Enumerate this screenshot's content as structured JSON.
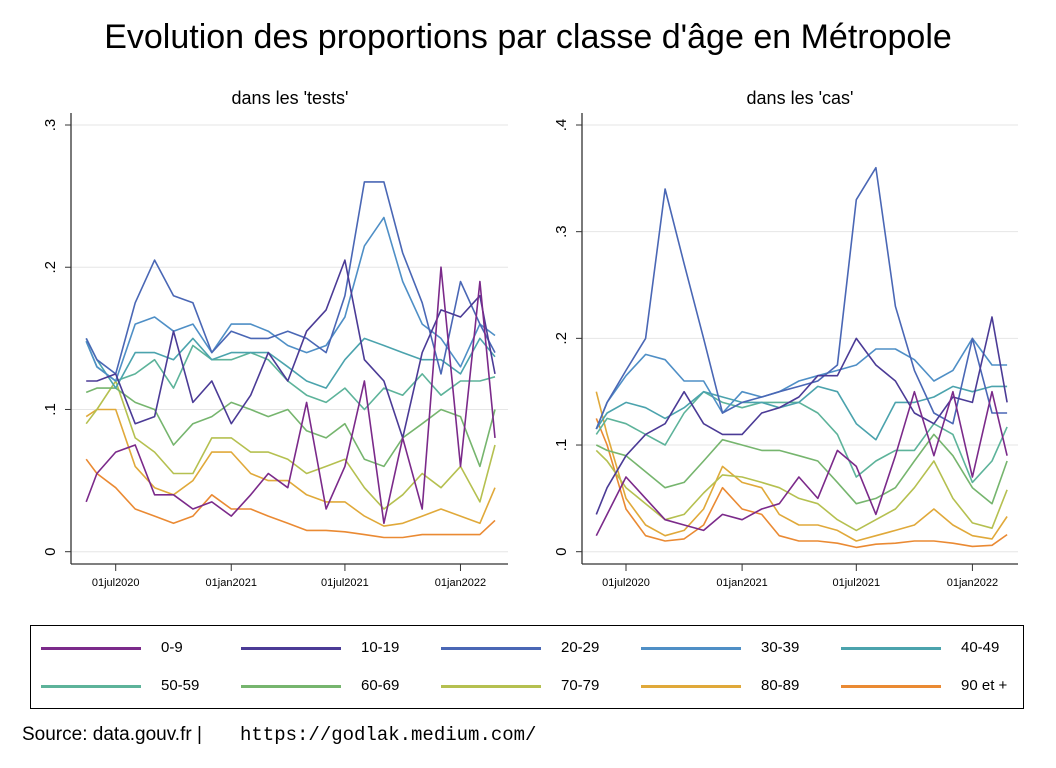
{
  "title": "Evolution des proportions par classe d'âge en Métropole",
  "source": "Source: data.gouv.fr |",
  "url": "https://godlak.medium.com/",
  "chart_data": [
    {
      "type": "line",
      "title": "dans les 'tests'",
      "xlabel": "",
      "ylabel": "",
      "ylim": [
        0,
        0.3
      ],
      "yticks": [
        {
          "v": 0,
          "label": "0"
        },
        {
          "v": 0.1,
          "label": ".1"
        },
        {
          "v": 0.2,
          "label": ".2"
        },
        {
          "v": 0.3,
          "label": ".3"
        }
      ],
      "xticks": [
        {
          "date": "2020-07-01",
          "label": "01jul2020"
        },
        {
          "date": "2021-01-01",
          "label": "01jan2021"
        },
        {
          "date": "2021-07-01",
          "label": "01jul2021"
        },
        {
          "date": "2022-01-01",
          "label": "01jan2022"
        }
      ],
      "grid": true,
      "x": [
        "2020-05-15",
        "2020-06-01",
        "2020-07-01",
        "2020-08-01",
        "2020-09-01",
        "2020-10-01",
        "2020-11-01",
        "2020-12-01",
        "2021-01-01",
        "2021-02-01",
        "2021-03-01",
        "2021-04-01",
        "2021-05-01",
        "2021-06-01",
        "2021-07-01",
        "2021-08-01",
        "2021-09-01",
        "2021-10-01",
        "2021-11-01",
        "2021-12-01",
        "2022-01-01",
        "2022-02-01",
        "2022-02-25"
      ],
      "series": [
        {
          "name": "0-9",
          "values": [
            0.035,
            0.055,
            0.07,
            0.075,
            0.04,
            0.04,
            0.03,
            0.035,
            0.025,
            0.04,
            0.055,
            0.045,
            0.105,
            0.03,
            0.06,
            0.12,
            0.02,
            0.08,
            0.03,
            0.2,
            0.06,
            0.19,
            0.08
          ]
        },
        {
          "name": "10-19",
          "values": [
            0.12,
            0.12,
            0.125,
            0.09,
            0.095,
            0.155,
            0.105,
            0.12,
            0.09,
            0.11,
            0.14,
            0.12,
            0.155,
            0.17,
            0.205,
            0.135,
            0.12,
            0.08,
            0.14,
            0.17,
            0.165,
            0.18,
            0.125
          ]
        },
        {
          "name": "20-29",
          "values": [
            0.15,
            0.135,
            0.125,
            0.175,
            0.205,
            0.18,
            0.175,
            0.14,
            0.155,
            0.15,
            0.15,
            0.155,
            0.15,
            0.14,
            0.18,
            0.26,
            0.26,
            0.21,
            0.175,
            0.125,
            0.19,
            0.16,
            0.14
          ]
        },
        {
          "name": "30-39",
          "values": [
            0.148,
            0.13,
            0.12,
            0.16,
            0.165,
            0.155,
            0.16,
            0.14,
            0.16,
            0.16,
            0.155,
            0.145,
            0.14,
            0.145,
            0.165,
            0.215,
            0.235,
            0.19,
            0.16,
            0.15,
            0.13,
            0.16,
            0.152
          ]
        },
        {
          "name": "40-49",
          "values": [
            0.15,
            0.135,
            0.115,
            0.14,
            0.14,
            0.135,
            0.15,
            0.135,
            0.14,
            0.14,
            0.14,
            0.13,
            0.12,
            0.115,
            0.135,
            0.15,
            0.145,
            0.14,
            0.135,
            0.135,
            0.125,
            0.15,
            0.137
          ]
        },
        {
          "name": "50-59",
          "values": [
            0.148,
            0.13,
            0.12,
            0.125,
            0.135,
            0.115,
            0.145,
            0.135,
            0.135,
            0.14,
            0.135,
            0.12,
            0.11,
            0.105,
            0.115,
            0.1,
            0.115,
            0.11,
            0.125,
            0.11,
            0.12,
            0.12,
            0.123
          ]
        },
        {
          "name": "60-69",
          "values": [
            0.112,
            0.115,
            0.115,
            0.105,
            0.1,
            0.075,
            0.09,
            0.095,
            0.105,
            0.1,
            0.095,
            0.1,
            0.085,
            0.08,
            0.09,
            0.065,
            0.06,
            0.08,
            0.09,
            0.1,
            0.095,
            0.06,
            0.1
          ]
        },
        {
          "name": "70-79",
          "values": [
            0.09,
            0.1,
            0.12,
            0.08,
            0.07,
            0.055,
            0.055,
            0.08,
            0.08,
            0.07,
            0.07,
            0.065,
            0.055,
            0.06,
            0.065,
            0.045,
            0.03,
            0.04,
            0.055,
            0.045,
            0.06,
            0.035,
            0.075
          ]
        },
        {
          "name": "80-89",
          "values": [
            0.095,
            0.1,
            0.1,
            0.06,
            0.045,
            0.04,
            0.05,
            0.07,
            0.07,
            0.055,
            0.05,
            0.05,
            0.04,
            0.035,
            0.035,
            0.025,
            0.018,
            0.02,
            0.025,
            0.03,
            0.025,
            0.02,
            0.045
          ]
        },
        {
          "name": "90 et +",
          "values": [
            0.065,
            0.055,
            0.045,
            0.03,
            0.025,
            0.02,
            0.025,
            0.04,
            0.03,
            0.03,
            0.025,
            0.02,
            0.015,
            0.015,
            0.014,
            0.012,
            0.01,
            0.01,
            0.012,
            0.012,
            0.012,
            0.012,
            0.022
          ]
        }
      ]
    },
    {
      "type": "line",
      "title": "dans les 'cas'",
      "xlabel": "",
      "ylabel": "",
      "ylim": [
        0,
        0.4
      ],
      "yticks": [
        {
          "v": 0,
          "label": "0"
        },
        {
          "v": 0.1,
          "label": ".1"
        },
        {
          "v": 0.2,
          "label": ".2"
        },
        {
          "v": 0.3,
          "label": ".3"
        },
        {
          "v": 0.4,
          "label": ".4"
        }
      ],
      "xticks": [
        {
          "date": "2020-07-01",
          "label": "01jul2020"
        },
        {
          "date": "2021-01-01",
          "label": "01jan2021"
        },
        {
          "date": "2021-07-01",
          "label": "01jul2021"
        },
        {
          "date": "2022-01-01",
          "label": "01jan2022"
        }
      ],
      "grid": true,
      "x": [
        "2020-05-15",
        "2020-06-01",
        "2020-07-01",
        "2020-08-01",
        "2020-09-01",
        "2020-10-01",
        "2020-11-01",
        "2020-12-01",
        "2021-01-01",
        "2021-02-01",
        "2021-03-01",
        "2021-04-01",
        "2021-05-01",
        "2021-06-01",
        "2021-07-01",
        "2021-08-01",
        "2021-09-01",
        "2021-10-01",
        "2021-11-01",
        "2021-12-01",
        "2022-01-01",
        "2022-02-01",
        "2022-02-25"
      ],
      "series": [
        {
          "name": "0-9",
          "values": [
            0.015,
            0.035,
            0.07,
            0.05,
            0.03,
            0.025,
            0.02,
            0.035,
            0.03,
            0.04,
            0.045,
            0.07,
            0.05,
            0.095,
            0.08,
            0.035,
            0.09,
            0.15,
            0.09,
            0.15,
            0.07,
            0.15,
            0.09
          ]
        },
        {
          "name": "10-19",
          "values": [
            0.035,
            0.06,
            0.09,
            0.11,
            0.12,
            0.15,
            0.12,
            0.11,
            0.11,
            0.13,
            0.135,
            0.145,
            0.165,
            0.165,
            0.2,
            0.175,
            0.16,
            0.13,
            0.12,
            0.145,
            0.14,
            0.22,
            0.14
          ]
        },
        {
          "name": "20-29",
          "values": [
            0.115,
            0.14,
            0.17,
            0.2,
            0.34,
            0.27,
            0.2,
            0.13,
            0.14,
            0.145,
            0.15,
            0.155,
            0.16,
            0.175,
            0.33,
            0.36,
            0.23,
            0.17,
            0.13,
            0.12,
            0.2,
            0.13,
            0.13
          ]
        },
        {
          "name": "30-39",
          "values": [
            0.115,
            0.14,
            0.165,
            0.185,
            0.18,
            0.16,
            0.16,
            0.13,
            0.15,
            0.145,
            0.15,
            0.16,
            0.165,
            0.17,
            0.175,
            0.19,
            0.19,
            0.18,
            0.16,
            0.17,
            0.2,
            0.175,
            0.175
          ]
        },
        {
          "name": "40-49",
          "values": [
            0.115,
            0.13,
            0.14,
            0.135,
            0.125,
            0.135,
            0.15,
            0.145,
            0.14,
            0.14,
            0.135,
            0.14,
            0.155,
            0.15,
            0.12,
            0.105,
            0.14,
            0.14,
            0.145,
            0.155,
            0.15,
            0.155,
            0.155
          ]
        },
        {
          "name": "50-59",
          "values": [
            0.11,
            0.125,
            0.12,
            0.11,
            0.1,
            0.13,
            0.15,
            0.14,
            0.135,
            0.14,
            0.14,
            0.14,
            0.13,
            0.11,
            0.07,
            0.085,
            0.095,
            0.095,
            0.12,
            0.11,
            0.065,
            0.085,
            0.117
          ]
        },
        {
          "name": "60-69",
          "values": [
            0.1,
            0.095,
            0.09,
            0.075,
            0.06,
            0.065,
            0.085,
            0.105,
            0.1,
            0.095,
            0.095,
            0.09,
            0.085,
            0.065,
            0.045,
            0.05,
            0.06,
            0.085,
            0.11,
            0.09,
            0.06,
            0.045,
            0.085
          ]
        },
        {
          "name": "70-79",
          "values": [
            0.095,
            0.085,
            0.06,
            0.045,
            0.03,
            0.035,
            0.055,
            0.072,
            0.07,
            0.065,
            0.06,
            0.05,
            0.045,
            0.03,
            0.02,
            0.03,
            0.04,
            0.06,
            0.085,
            0.05,
            0.027,
            0.022,
            0.058
          ]
        },
        {
          "name": "80-89",
          "values": [
            0.15,
            0.11,
            0.05,
            0.025,
            0.015,
            0.02,
            0.04,
            0.08,
            0.065,
            0.06,
            0.035,
            0.025,
            0.025,
            0.02,
            0.01,
            0.015,
            0.02,
            0.025,
            0.04,
            0.025,
            0.015,
            0.012,
            0.033
          ]
        },
        {
          "name": "90 et +",
          "values": [
            0.125,
            0.1,
            0.04,
            0.015,
            0.01,
            0.012,
            0.025,
            0.06,
            0.04,
            0.035,
            0.015,
            0.01,
            0.01,
            0.008,
            0.004,
            0.007,
            0.008,
            0.01,
            0.01,
            0.008,
            0.005,
            0.006,
            0.016
          ]
        }
      ]
    }
  ],
  "legend": {
    "placement": "bottom",
    "items": [
      {
        "label": "0-9",
        "color": "#7b2a8a"
      },
      {
        "label": "10-19",
        "color": "#4b3b96"
      },
      {
        "label": "20-29",
        "color": "#4a67b5"
      },
      {
        "label": "30-39",
        "color": "#4f8fc6"
      },
      {
        "label": "40-49",
        "color": "#4ba3ad"
      },
      {
        "label": "50-59",
        "color": "#5db39a"
      },
      {
        "label": "60-69",
        "color": "#76b56e"
      },
      {
        "label": "70-79",
        "color": "#b5c050"
      },
      {
        "label": "80-89",
        "color": "#e0a93a"
      },
      {
        "label": "90 et +",
        "color": "#ea8a33"
      }
    ]
  }
}
